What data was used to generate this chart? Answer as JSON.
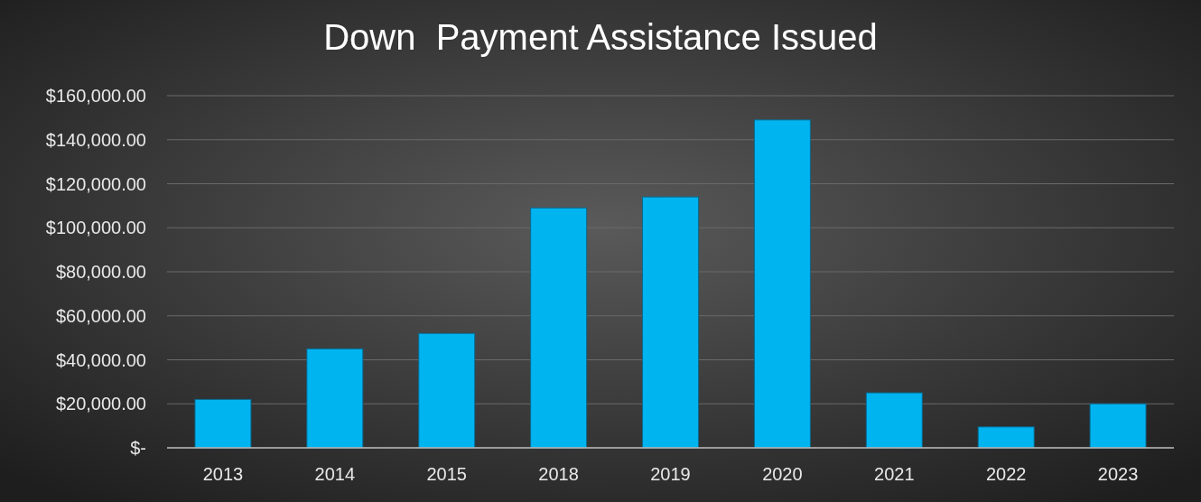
{
  "chart_data": {
    "type": "bar",
    "title": "Down  Payment Assistance Issued",
    "categories": [
      "2013",
      "2014",
      "2015",
      "2018",
      "2019",
      "2020",
      "2021",
      "2022",
      "2023"
    ],
    "values": [
      22000,
      45000,
      52000,
      109000,
      114000,
      149000,
      25000,
      9500,
      20000
    ],
    "color": "#00b4f0",
    "ylim": [
      0,
      160000
    ],
    "yticks": [
      {
        "value": 0,
        "label": "$-"
      },
      {
        "value": 20000,
        "label": "$20,000.00"
      },
      {
        "value": 40000,
        "label": "$40,000.00"
      },
      {
        "value": 60000,
        "label": "$60,000.00"
      },
      {
        "value": 80000,
        "label": "$80,000.00"
      },
      {
        "value": 100000,
        "label": "$100,000.00"
      },
      {
        "value": 120000,
        "label": "$120,000.00"
      },
      {
        "value": 140000,
        "label": "$140,000.00"
      },
      {
        "value": 160000,
        "label": "$160,000.00"
      }
    ],
    "grid": "y"
  }
}
